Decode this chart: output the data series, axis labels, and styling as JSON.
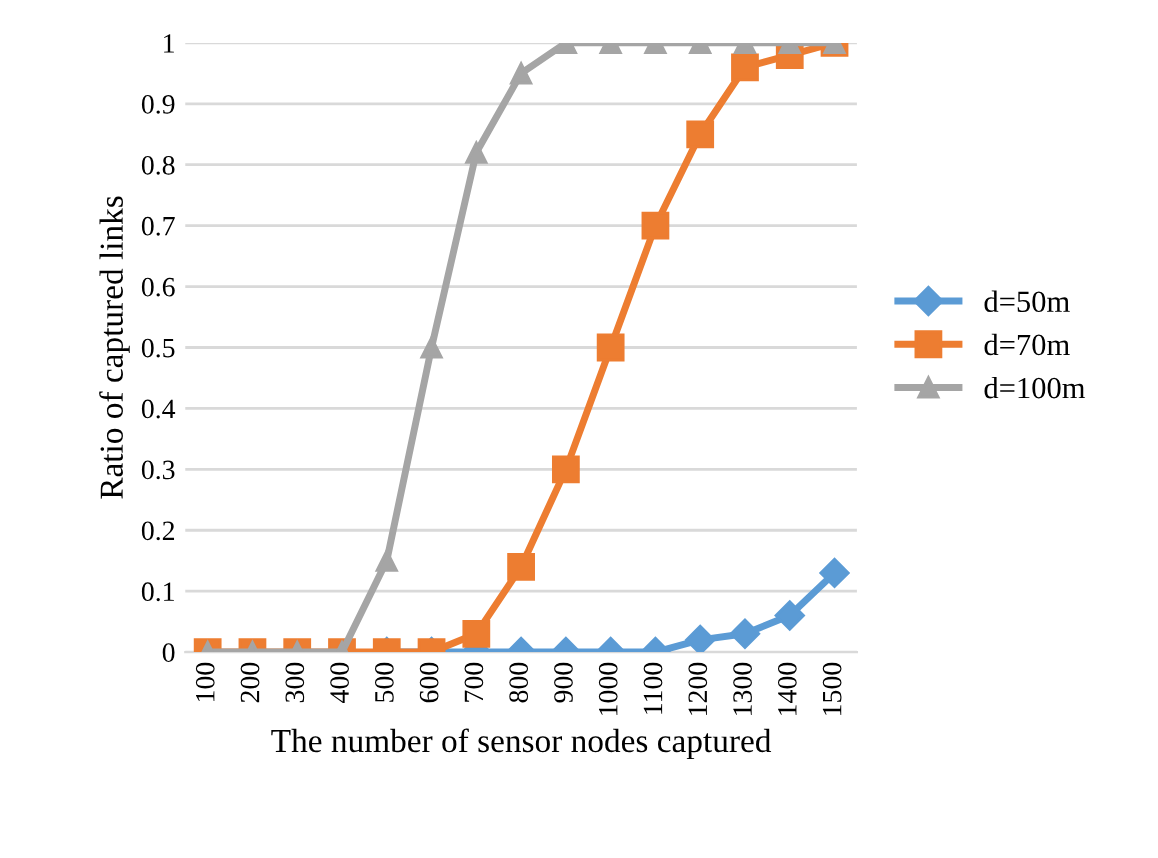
{
  "chart_data": {
    "type": "line",
    "xlabel": "The number of sensor nodes captured",
    "ylabel": "Ratio of captured links",
    "categories": [
      "100",
      "200",
      "300",
      "400",
      "500",
      "600",
      "700",
      "800",
      "900",
      "1000",
      "1100",
      "1200",
      "1300",
      "1400",
      "1500"
    ],
    "series": [
      {
        "name": "d=50m",
        "color": "#5b9bd5",
        "marker": "diamond",
        "values": [
          null,
          null,
          null,
          null,
          0,
          0,
          0,
          0,
          0,
          0,
          0,
          0.02,
          0.03,
          0.06,
          0.13
        ]
      },
      {
        "name": "d=70m",
        "color": "#ed7d31",
        "marker": "square",
        "values": [
          0,
          0,
          0,
          0,
          0,
          0,
          0.03,
          0.14,
          0.3,
          0.5,
          0.7,
          0.85,
          0.96,
          0.98,
          1
        ]
      },
      {
        "name": "d=100m",
        "color": "#a5a5a5",
        "marker": "triangle",
        "values": [
          0,
          0,
          0,
          0,
          0.15,
          0.5,
          0.82,
          0.95,
          1,
          1,
          1,
          1,
          1,
          1,
          1
        ]
      }
    ],
    "ylim": [
      0,
      1
    ],
    "yticks": [
      0,
      0.1,
      0.2,
      0.3,
      0.4,
      0.5,
      0.6,
      0.7,
      0.8,
      0.9,
      1
    ],
    "grid": "y",
    "legend": "right",
    "line_style": "solid"
  }
}
